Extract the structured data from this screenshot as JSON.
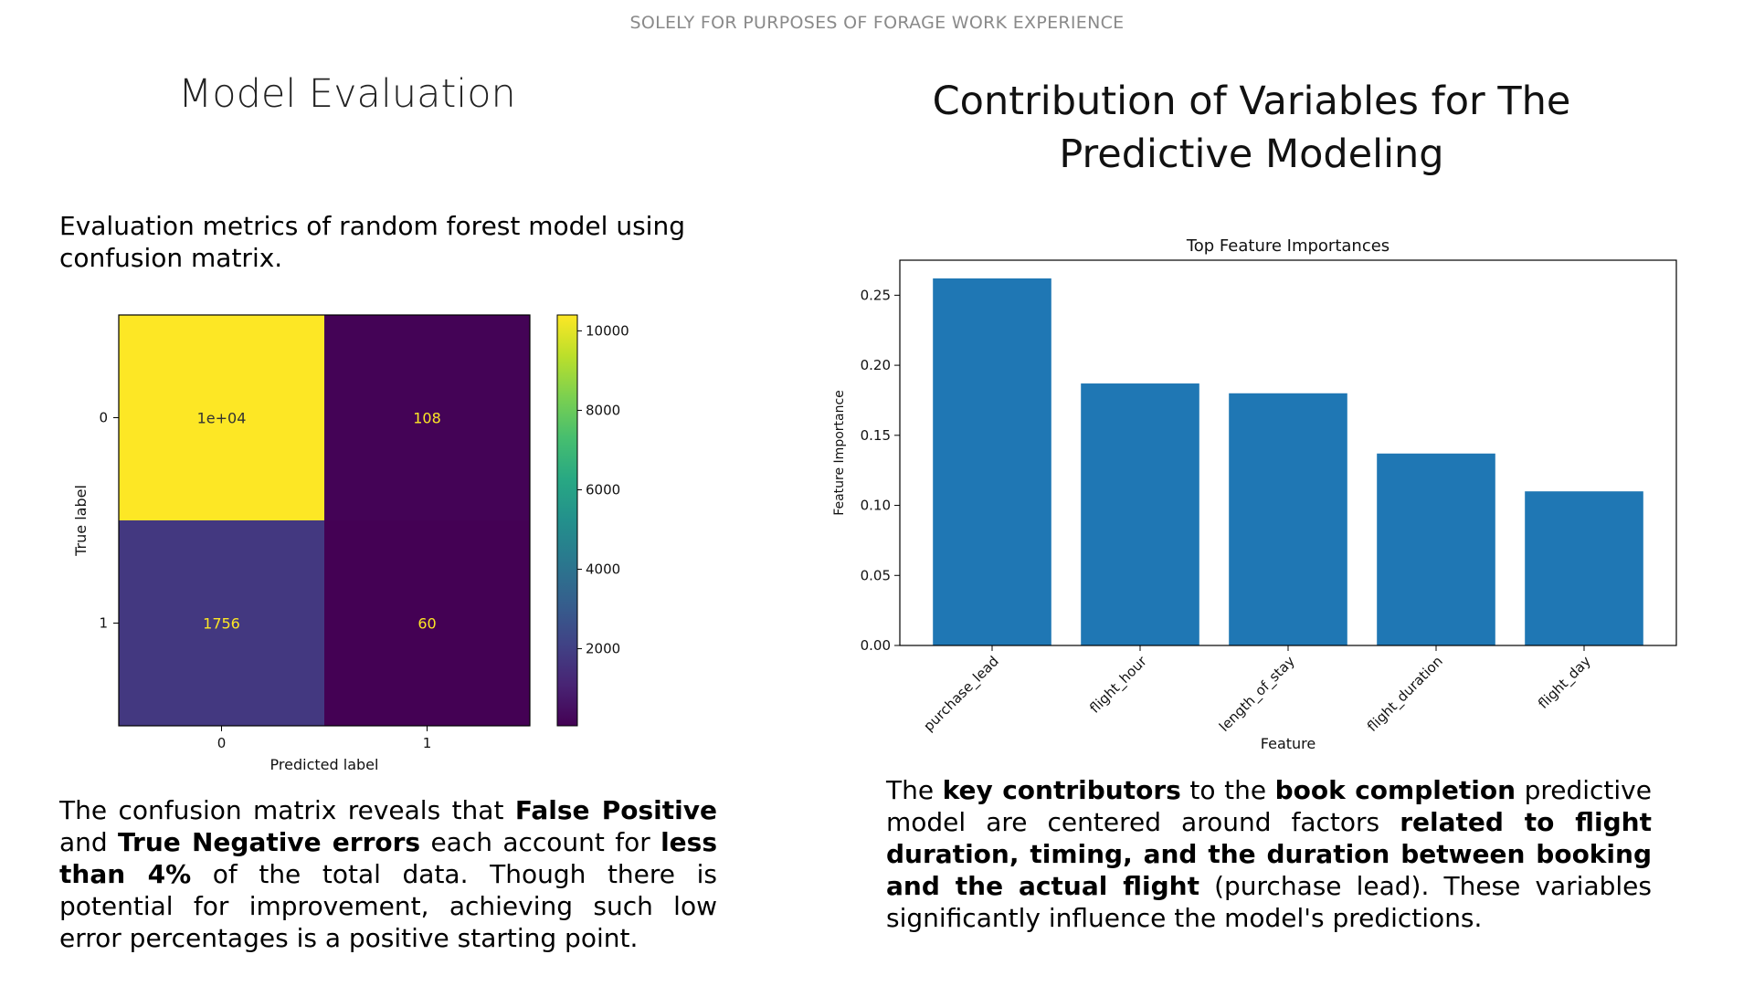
{
  "banner": "SOLELY FOR PURPOSES OF FORAGE WORK EXPERIENCE",
  "left": {
    "title": "Model Evaluation",
    "intro": "Evaluation metrics of random forest model using confusion matrix.",
    "paragraph": [
      {
        "text": "The confusion matrix reveals that ",
        "bold": false
      },
      {
        "text": "False Positive",
        "bold": true
      },
      {
        "text": " and ",
        "bold": false
      },
      {
        "text": "True Negative errors",
        "bold": true
      },
      {
        "text": " each account for ",
        "bold": false
      },
      {
        "text": "less than 4%",
        "bold": true
      },
      {
        "text": " of the total data. Though there is potential for improvement, achieving such low error percentages is a positive starting point.",
        "bold": false
      }
    ]
  },
  "right": {
    "title": "Contribution of Variables for The Predictive Modeling",
    "paragraph": [
      {
        "text": "The ",
        "bold": false
      },
      {
        "text": "key contributors",
        "bold": true
      },
      {
        "text": " to the ",
        "bold": false
      },
      {
        "text": "book completion",
        "bold": true
      },
      {
        "text": " predictive model are centered around factors ",
        "bold": false
      },
      {
        "text": "related to flight duration, timing, and the duration between booking and the actual flight",
        "bold": true
      },
      {
        "text": " (purchase lead). These variables significantly influence the model's predictions.",
        "bold": false
      }
    ]
  },
  "chart_data": [
    {
      "type": "heatmap",
      "title": "",
      "xlabel": "Predicted label",
      "ylabel": "True label",
      "x_ticks": [
        "0",
        "1"
      ],
      "y_ticks": [
        "0",
        "1"
      ],
      "values": [
        [
          10400,
          108
        ],
        [
          1756,
          60
        ]
      ],
      "cell_labels": [
        [
          "1e+04",
          "108"
        ],
        [
          "1756",
          "60"
        ]
      ],
      "colormap": "viridis",
      "colorbar_range": [
        60,
        10400
      ],
      "colorbar_ticks": [
        "2000",
        "4000",
        "6000",
        "8000",
        "10000"
      ],
      "colorbar_tick_values": [
        2000,
        4000,
        6000,
        8000,
        10000
      ],
      "colors": {
        "high": "#fde725",
        "low": "#440154",
        "mid_low": "#433d84"
      }
    },
    {
      "type": "bar",
      "title": "Top Feature Importances",
      "xlabel": "Feature",
      "ylabel": "Feature Importance",
      "categories": [
        "purchase_lead",
        "flight_hour",
        "length_of_stay",
        "flight_duration",
        "flight_day"
      ],
      "values": [
        0.262,
        0.187,
        0.18,
        0.137,
        0.11
      ],
      "ylim": [
        0,
        0.275
      ],
      "y_ticks": [
        "0.00",
        "0.05",
        "0.10",
        "0.15",
        "0.20",
        "0.25"
      ],
      "y_tick_values": [
        0,
        0.05,
        0.1,
        0.15,
        0.2,
        0.25
      ],
      "bar_color": "#1f77b4",
      "grid": false
    }
  ]
}
